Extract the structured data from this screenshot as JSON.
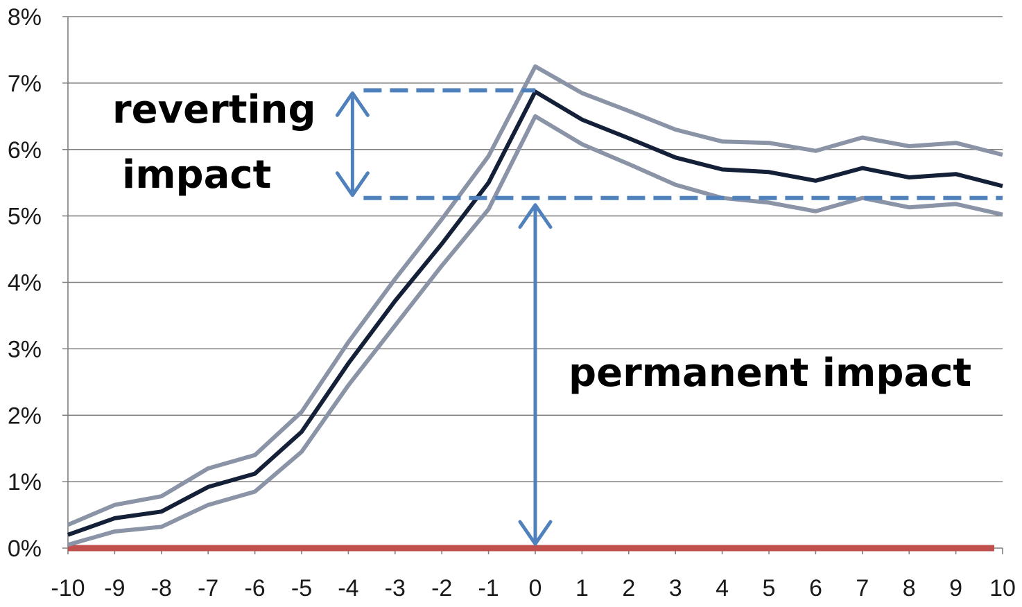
{
  "chart_data": {
    "type": "line",
    "title": "",
    "xlabel": "",
    "ylabel": "",
    "x": [
      -10,
      -9,
      -8,
      -7,
      -6,
      -5,
      -4,
      -3,
      -2,
      -1,
      0,
      1,
      2,
      3,
      4,
      5,
      6,
      7,
      8,
      9,
      10
    ],
    "x_tick_labels": [
      "-10",
      "-9",
      "-8",
      "-7",
      "-6",
      "-5",
      "-4",
      "-3",
      "-2",
      "-1",
      "0",
      "1",
      "2",
      "3",
      "4",
      "5",
      "6",
      "7",
      "8",
      "9",
      "10"
    ],
    "ylim": [
      0,
      8
    ],
    "y_ticks": [
      0,
      1,
      2,
      3,
      4,
      5,
      6,
      7,
      8
    ],
    "y_tick_labels": [
      "0%",
      "1%",
      "2%",
      "3%",
      "4%",
      "5%",
      "6%",
      "7%",
      "8%"
    ],
    "y_unit": "%",
    "grid": "horizontal",
    "series": [
      {
        "color": "#8a94a6",
        "values": [
          0.35,
          0.65,
          0.78,
          1.2,
          1.4,
          2.05,
          3.1,
          4.05,
          4.95,
          5.9,
          7.25,
          6.85,
          6.58,
          6.3,
          6.12,
          6.1,
          5.98,
          6.18,
          6.05,
          6.1,
          5.92
        ]
      },
      {
        "color": "#142038",
        "values": [
          0.2,
          0.45,
          0.55,
          0.92,
          1.12,
          1.75,
          2.78,
          3.72,
          4.58,
          5.5,
          6.87,
          6.45,
          6.17,
          5.88,
          5.7,
          5.66,
          5.53,
          5.72,
          5.58,
          5.63,
          5.45
        ]
      },
      {
        "color": "#8a94a6",
        "values": [
          0.05,
          0.25,
          0.32,
          0.65,
          0.85,
          1.45,
          2.45,
          3.35,
          4.25,
          5.1,
          6.5,
          6.08,
          5.78,
          5.47,
          5.27,
          5.2,
          5.07,
          5.27,
          5.13,
          5.18,
          5.02
        ]
      }
    ],
    "baseline": {
      "y": 0,
      "color": "#c0504d"
    },
    "annotations": {
      "color": "#4f81bd",
      "reverting_line1": "reverting",
      "reverting_line2": "impact",
      "permanent": "permanent impact",
      "peak_level": 6.87,
      "permanent_level": 5.27,
      "permanent_arrow_x": 0,
      "reverting_arrow_x": -4,
      "peak_line_from_x": -4,
      "peak_line_to_x": 0,
      "permanent_line_from_x": -4,
      "permanent_line_to_x": 10
    }
  }
}
